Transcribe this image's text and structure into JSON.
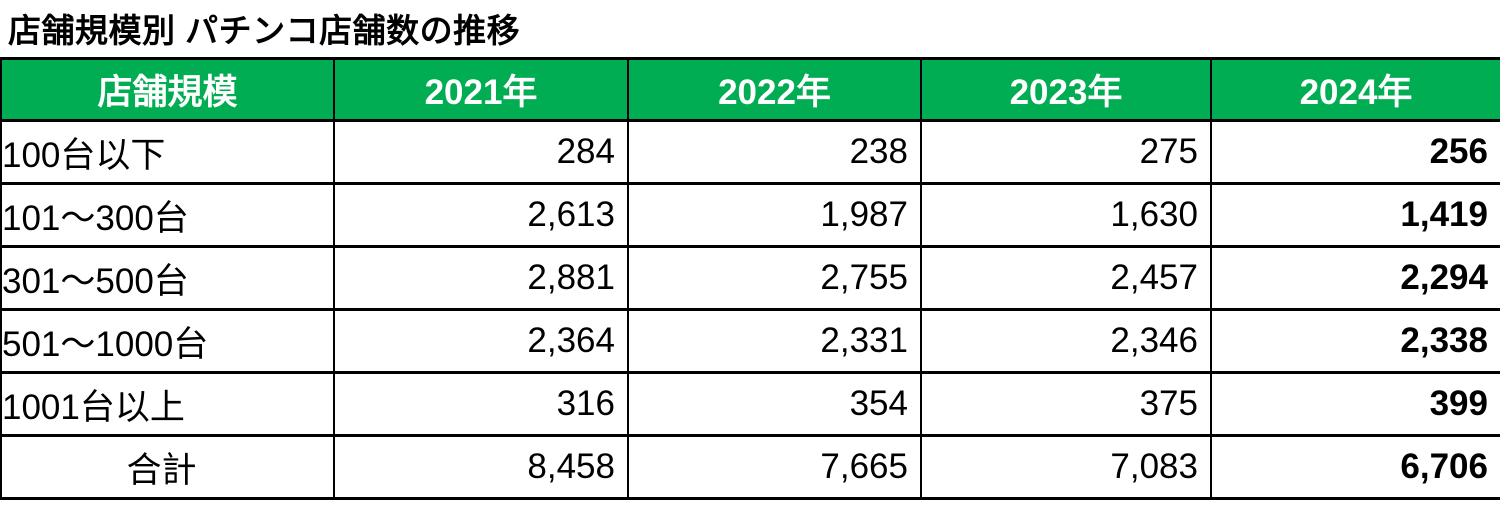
{
  "title": "店舗規模別 パチンコ店舗数の推移",
  "colors": {
    "header_bg": "#00AD52",
    "header_text": "#FFFFFF",
    "border": "#000000",
    "body_text": "#000000"
  },
  "table": {
    "columns": [
      "店舗規模",
      "2021年",
      "2022年",
      "2023年",
      "2024年"
    ],
    "bold_column": "2024年",
    "rows": [
      {
        "label": "100台以下",
        "values": [
          "284",
          "238",
          "275",
          "256"
        ],
        "is_total": false
      },
      {
        "label": "101〜300台",
        "values": [
          "2,613",
          "1,987",
          "1,630",
          "1,419"
        ],
        "is_total": false
      },
      {
        "label": "301〜500台",
        "values": [
          "2,881",
          "2,755",
          "2,457",
          "2,294"
        ],
        "is_total": false
      },
      {
        "label": "501〜1000台",
        "values": [
          "2,364",
          "2,331",
          "2,346",
          "2,338"
        ],
        "is_total": false
      },
      {
        "label": "1001台以上",
        "values": [
          "316",
          "354",
          "375",
          "399"
        ],
        "is_total": false
      },
      {
        "label": "合計",
        "values": [
          "8,458",
          "7,665",
          "7,083",
          "6,706"
        ],
        "is_total": true
      }
    ]
  },
  "chart_data": {
    "type": "table",
    "title": "店舗規模別 パチンコ店舗数の推移",
    "categories": [
      "100台以下",
      "101〜300台",
      "301〜500台",
      "501〜1000台",
      "1001台以上",
      "合計"
    ],
    "series": [
      {
        "name": "2021年",
        "values": [
          284,
          2613,
          2881,
          2364,
          316,
          8458
        ]
      },
      {
        "name": "2022年",
        "values": [
          238,
          1987,
          2755,
          2331,
          354,
          7665
        ]
      },
      {
        "name": "2023年",
        "values": [
          275,
          1630,
          2457,
          2346,
          375,
          7083
        ]
      },
      {
        "name": "2024年",
        "values": [
          256,
          1419,
          2294,
          2338,
          399,
          6706
        ]
      }
    ],
    "layout": {
      "header_background": "#00AD52",
      "header_text_color": "#FFFFFF",
      "grid": true,
      "bold_series": "2024年",
      "number_format": "thousands-comma"
    }
  }
}
